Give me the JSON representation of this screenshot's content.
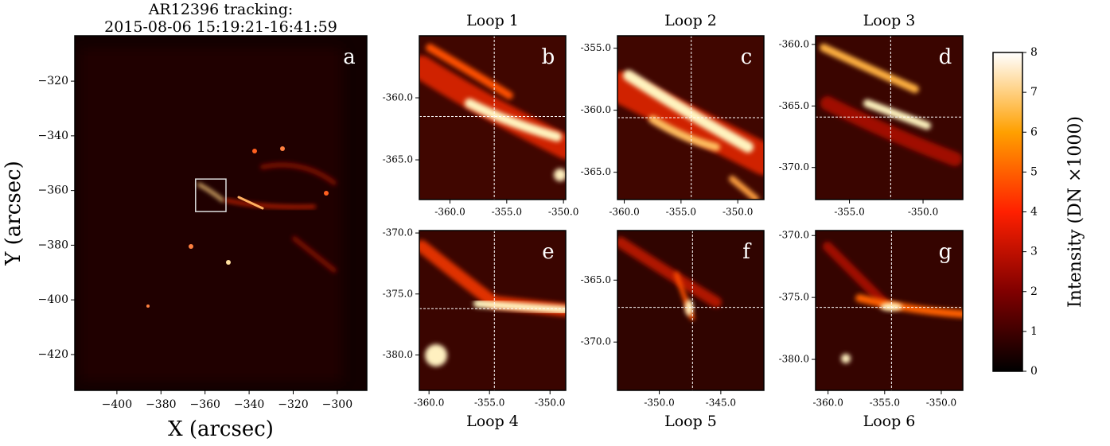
{
  "chart_data": [
    {
      "type": "image",
      "title": [
        "AR12396 tracking:",
        "2015-08-06 15:19:21-16:41:59"
      ],
      "label": "a",
      "xlabel": "X (arcsec)",
      "ylabel": "Y (arcsec)",
      "xlim": [
        -419.1,
        -286.6
      ],
      "ylim": [
        -433.1,
        -303.4
      ],
      "xticks": [
        {
          "value": -400,
          "label": "−400"
        },
        {
          "value": -380,
          "label": "−380"
        },
        {
          "value": -360,
          "label": "−360"
        },
        {
          "value": -340,
          "label": "−340"
        },
        {
          "value": -320,
          "label": "−320"
        },
        {
          "value": -300,
          "label": "−300"
        }
      ],
      "yticks": [
        {
          "value": -320,
          "label": "−320"
        },
        {
          "value": -340,
          "label": "−340"
        },
        {
          "value": -360,
          "label": "−360"
        },
        {
          "value": -380,
          "label": "−380"
        },
        {
          "value": -400,
          "label": "−400"
        },
        {
          "value": -420,
          "label": "−420"
        }
      ],
      "box": {
        "x": [
          -364.3,
          -350.5
        ],
        "y": [
          -367.7,
          -355.8
        ]
      }
    },
    {
      "type": "image",
      "title": "Loop 1",
      "label": "b",
      "xlim": [
        -362.7,
        -349.8
      ],
      "ylim": [
        -368.2,
        -355.0
      ],
      "xticks": [
        {
          "value": -360,
          "label": "-360.0"
        },
        {
          "value": -355,
          "label": "-355.0"
        },
        {
          "value": -350,
          "label": "-350.0"
        }
      ],
      "yticks": [
        {
          "value": -360,
          "label": "-360.0"
        },
        {
          "value": -365,
          "label": "-365.0"
        }
      ],
      "crosshair": [
        -356.1,
        -361.5
      ]
    },
    {
      "type": "image",
      "title": "Loop 2",
      "label": "c",
      "xlim": [
        -360.6,
        -347.7
      ],
      "ylim": [
        -367.2,
        -354.0
      ],
      "xticks": [
        {
          "value": -360,
          "label": "-360.0"
        },
        {
          "value": -355,
          "label": "-355.0"
        },
        {
          "value": -350,
          "label": "-350.0"
        }
      ],
      "yticks": [
        {
          "value": -355,
          "label": "-355.0"
        },
        {
          "value": -360,
          "label": "-360.0"
        },
        {
          "value": -365,
          "label": "-365.0"
        }
      ],
      "crosshair": [
        -354.1,
        -360.6
      ]
    },
    {
      "type": "image",
      "title": "Loop 3",
      "label": "d",
      "xlim": [
        -357.3,
        -347.3
      ],
      "ylim": [
        -372.6,
        -359.3
      ],
      "xticks": [
        {
          "value": -355,
          "label": "-355.0"
        },
        {
          "value": -350,
          "label": "-350.0"
        }
      ],
      "yticks": [
        {
          "value": -360,
          "label": "-360.0"
        },
        {
          "value": -365,
          "label": "-365.0"
        },
        {
          "value": -370,
          "label": "-370.0"
        }
      ],
      "crosshair": [
        -352.2,
        -365.9
      ]
    },
    {
      "type": "image",
      "title": "Loop 4",
      "label": "e",
      "xlim": [
        -360.8,
        -348.7
      ],
      "ylim": [
        -382.9,
        -369.8
      ],
      "xticks": [
        {
          "value": -360,
          "label": "-360.0"
        },
        {
          "value": -355,
          "label": "-355.0"
        },
        {
          "value": -350,
          "label": "-350.0"
        }
      ],
      "yticks": [
        {
          "value": -370,
          "label": "-370.0"
        },
        {
          "value": -375,
          "label": "-375.0"
        },
        {
          "value": -380,
          "label": "-380.0"
        }
      ],
      "crosshair": [
        -354.6,
        -376.2
      ]
    },
    {
      "type": "image",
      "title": "Loop 5",
      "label": "f",
      "xlim": [
        -353.4,
        -341.5
      ],
      "ylim": [
        -373.9,
        -361.0
      ],
      "xticks": [
        {
          "value": -350,
          "label": "-350.0"
        },
        {
          "value": -345,
          "label": "-345.0"
        }
      ],
      "yticks": [
        {
          "value": -365,
          "label": "-365.0"
        },
        {
          "value": -370,
          "label": "-370.0"
        }
      ],
      "crosshair": [
        -347.3,
        -367.2
      ]
    },
    {
      "type": "image",
      "title": "Loop 6",
      "label": "g",
      "xlim": [
        -361.1,
        -348.1
      ],
      "ylim": [
        -382.5,
        -369.6
      ],
      "xticks": [
        {
          "value": -360,
          "label": "-360.0"
        },
        {
          "value": -355,
          "label": "-355.0"
        },
        {
          "value": -350,
          "label": "-350.0"
        }
      ],
      "yticks": [
        {
          "value": -370,
          "label": "-370.0"
        },
        {
          "value": -375,
          "label": "-375.0"
        },
        {
          "value": -380,
          "label": "-380.0"
        }
      ],
      "crosshair": [
        -354.4,
        -375.8
      ]
    },
    {
      "type": "colorbar",
      "label": "Intensity (DN ×1000)",
      "ylim": [
        0,
        8
      ],
      "yticks": [
        0,
        1,
        2,
        3,
        4,
        5,
        6,
        7,
        8
      ]
    }
  ]
}
